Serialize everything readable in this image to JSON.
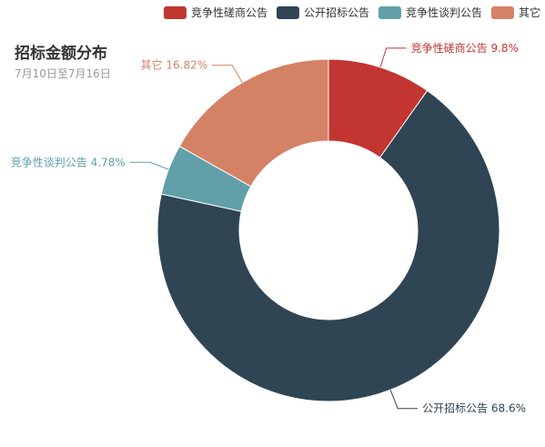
{
  "title": "招标金额分布",
  "subtitle": "7月10日至7月16日",
  "chart_data": {
    "type": "pie",
    "variant": "donut",
    "title": "招标金额分布",
    "subtitle": "7月10日至7月16日",
    "legend_position": "top-right",
    "slices": [
      {
        "name": "竞争性磋商公告",
        "value": 9.8,
        "label": "竞争性磋商公告 9.8%",
        "color": "#c23531"
      },
      {
        "name": "公开招标公告",
        "value": 68.6,
        "label": "公开招标公告 68.6%",
        "color": "#2f4554"
      },
      {
        "name": "竞争性谈判公告",
        "value": 4.78,
        "label": "竞争性谈判公告 4.78%",
        "color": "#61a0a8"
      },
      {
        "name": "其它",
        "value": 16.82,
        "label": "其它 16.82%",
        "color": "#d48265"
      }
    ]
  }
}
